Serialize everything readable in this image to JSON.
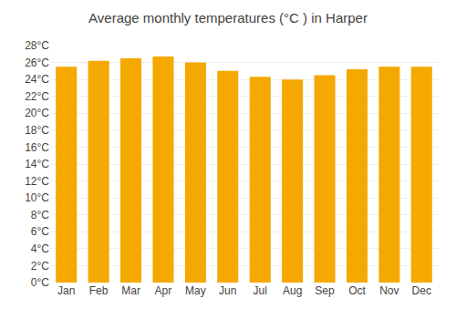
{
  "chart_data": {
    "type": "bar",
    "title": "Average monthly temperatures (°C ) in Harper",
    "categories": [
      "Jan",
      "Feb",
      "Mar",
      "Apr",
      "May",
      "Jun",
      "Jul",
      "Aug",
      "Sep",
      "Oct",
      "Nov",
      "Dec"
    ],
    "values": [
      25.5,
      26.2,
      26.5,
      26.7,
      26.0,
      25.0,
      24.3,
      24.0,
      24.5,
      25.2,
      25.5,
      25.5
    ],
    "color": "#F5A800",
    "ylim": [
      0,
      28
    ],
    "yticks": [
      {
        "value": 0,
        "label": "0°C"
      },
      {
        "value": 2,
        "label": "2°C"
      },
      {
        "value": 4,
        "label": "4°C"
      },
      {
        "value": 6,
        "label": "6°C"
      },
      {
        "value": 8,
        "label": "8°C"
      },
      {
        "value": 10,
        "label": "10°C"
      },
      {
        "value": 12,
        "label": "12°C"
      },
      {
        "value": 14,
        "label": "14°C"
      },
      {
        "value": 16,
        "label": "16°C"
      },
      {
        "value": 18,
        "label": "18°C"
      },
      {
        "value": 20,
        "label": "20°C"
      },
      {
        "value": 22,
        "label": "22°C"
      },
      {
        "value": 24,
        "label": "24°C"
      },
      {
        "value": 26,
        "label": "26°C"
      },
      {
        "value": 28,
        "label": "28°C"
      }
    ],
    "grid": true
  }
}
